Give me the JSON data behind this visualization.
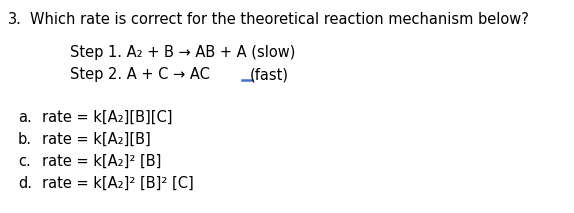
{
  "question_number": "3.",
  "question_text": "Which rate is correct for the theoretical reaction mechanism below?",
  "step1": "Step 1. A₂ + B → AB + A (slow)",
  "step2_main": "Step 2. A + C → AC",
  "step2_fast": "(fast)",
  "options": [
    {
      "letter": "a.",
      "text": "rate = k[A₂][B][C]"
    },
    {
      "letter": "b.",
      "text": "rate = k[A₂][B]"
    },
    {
      "letter": "c.",
      "text": "rate = k[A₂]² [B]"
    },
    {
      "letter": "d.",
      "text": "rate = k[A₂]² [B]² [C]"
    }
  ],
  "bg_color": "#ffffff",
  "text_color": "#000000",
  "underline_color": "#4472c4",
  "font_size": 10.5
}
